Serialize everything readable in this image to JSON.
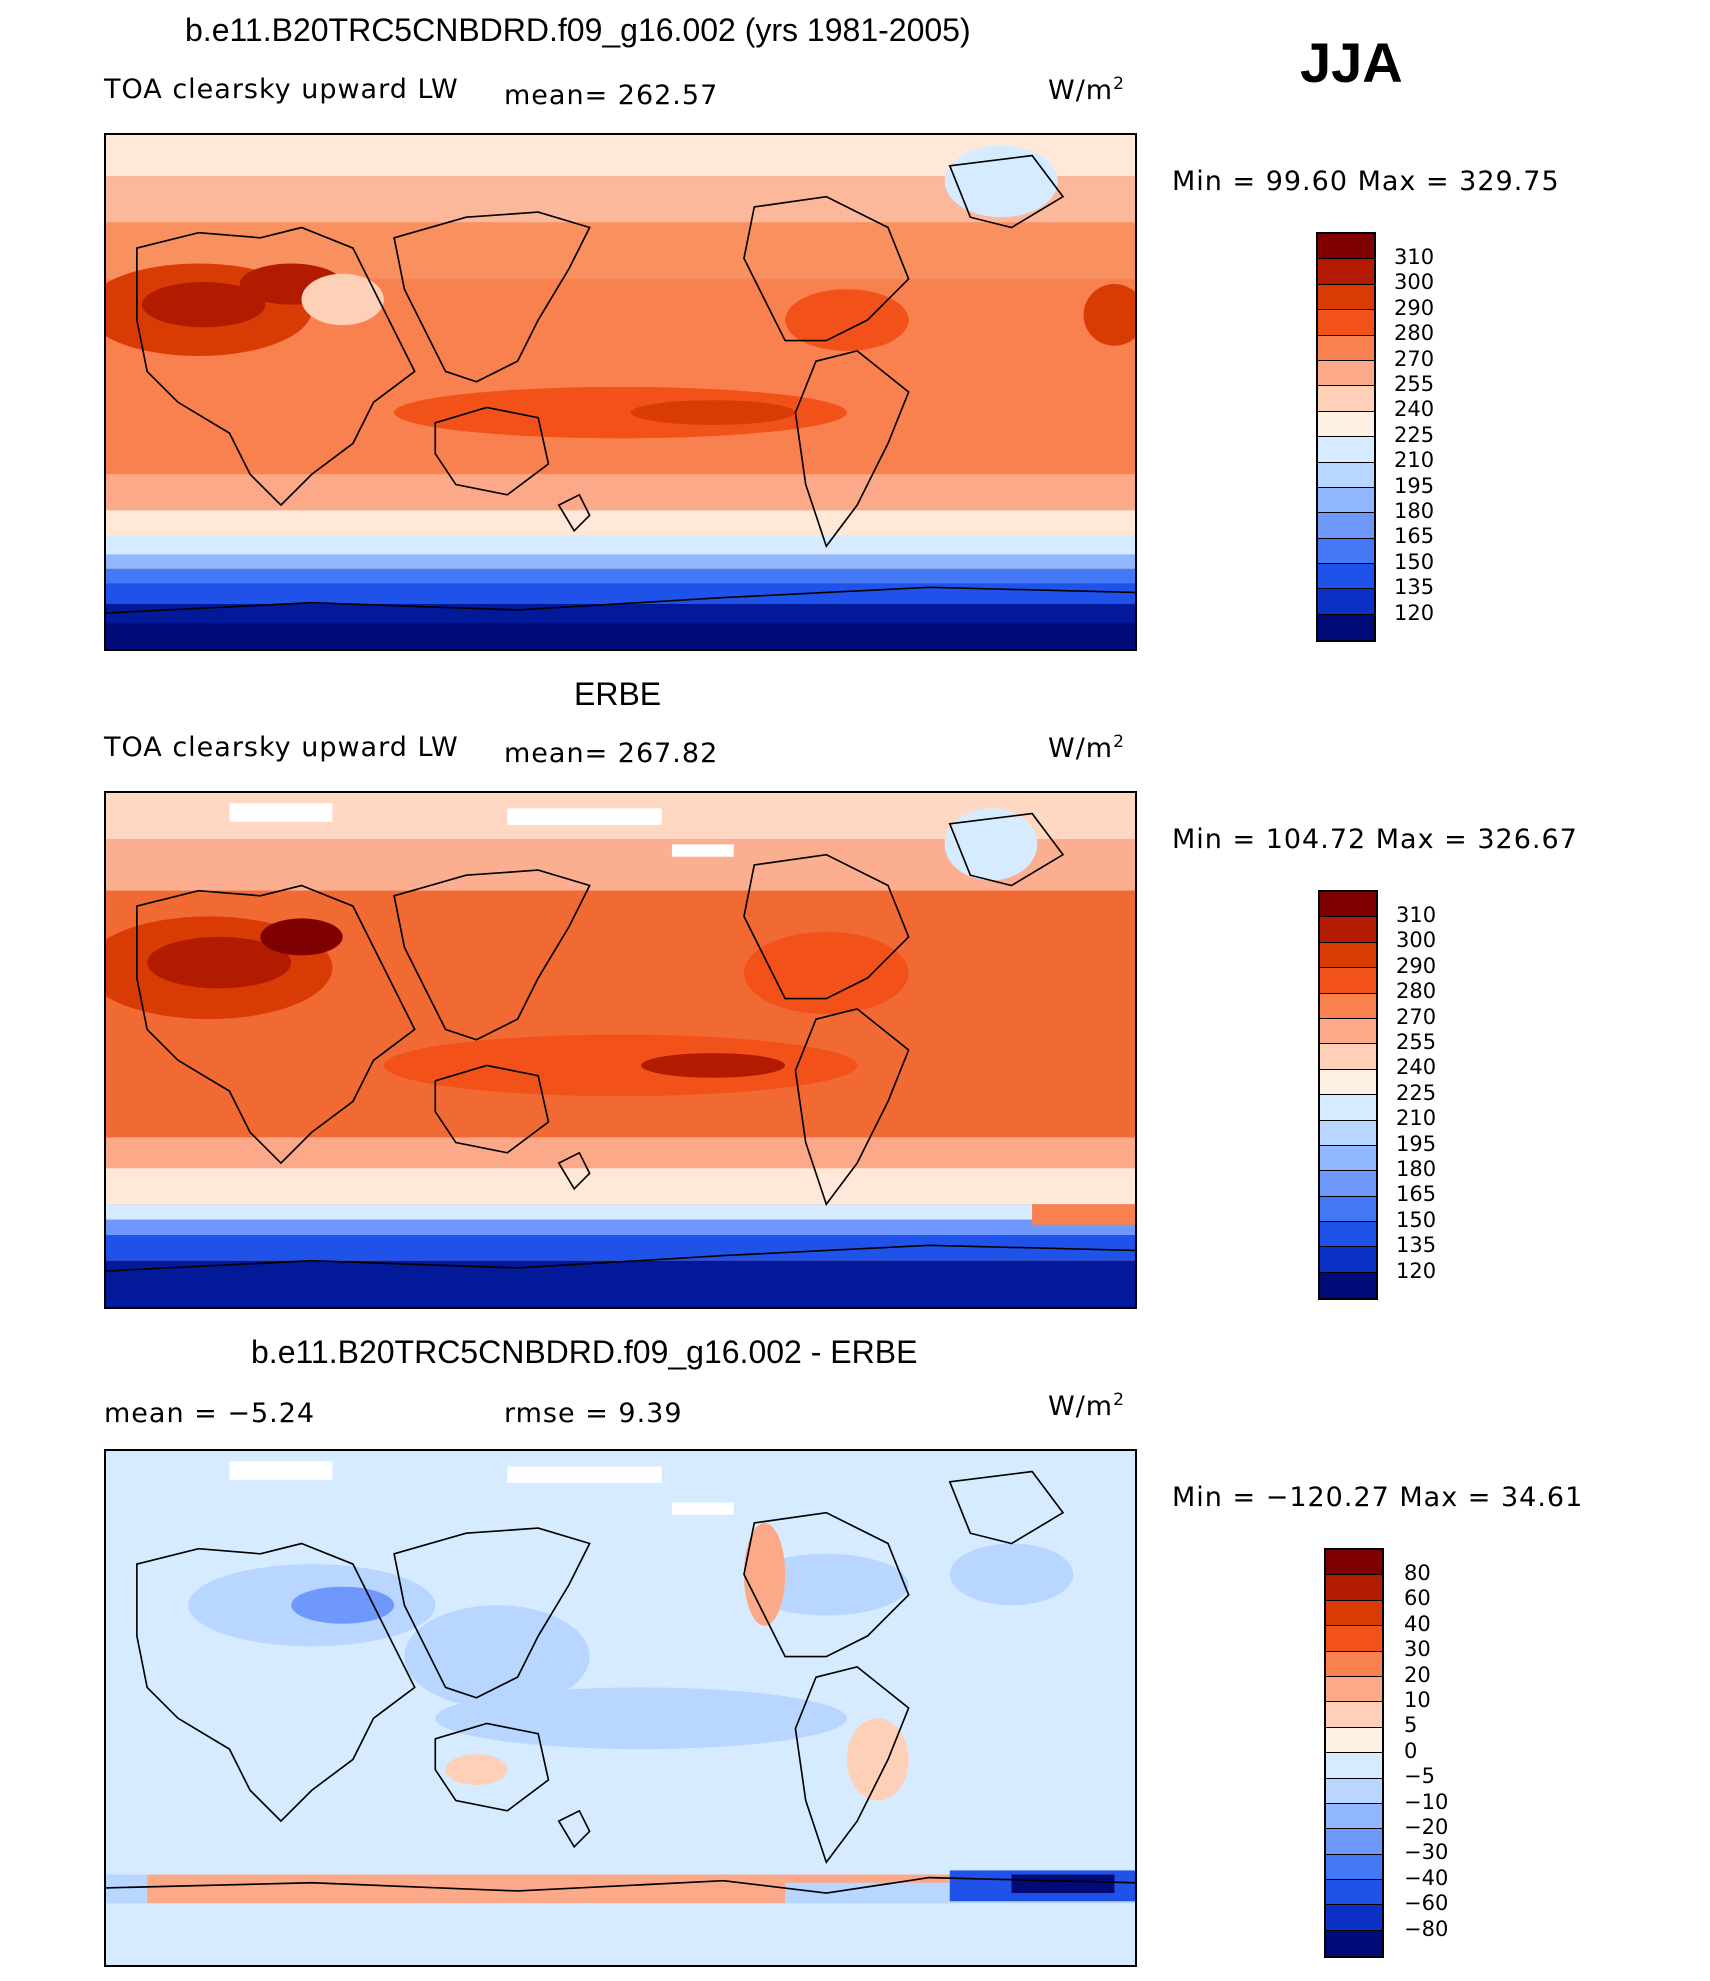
{
  "season": "JJA",
  "units": {
    "base": "W/m",
    "exp": "2"
  },
  "colors": {
    "warm": [
      "#7f0000",
      "#b31b00",
      "#d93b04",
      "#f25219",
      "#f9804f",
      "#fca98a",
      "#ffd0b8",
      "#fff0e4"
    ],
    "cool": [
      "#d6ebff",
      "#b8d6ff",
      "#91b8ff",
      "#6e98fc",
      "#4578f4",
      "#1f52e8",
      "#0b32c4",
      "#02199a",
      "#000b77"
    ],
    "diff": [
      "#7f0000",
      "#b31b00",
      "#d93b04",
      "#f25219",
      "#f9804f",
      "#fca98a",
      "#ffd0b8",
      "#fff0e4",
      "#d6ebff",
      "#b8d6ff",
      "#91b8ff",
      "#6e98fc",
      "#4578f4",
      "#1f52e8",
      "#0b32c4",
      "#02199a",
      "#000b77"
    ]
  },
  "panels": [
    {
      "title": "b.e11.B20TRC5CNBDRD.f09_g16.002 (yrs 1981-2005)",
      "left_label": "TOA clearsky upward LW",
      "mid_label": "mean=  262.57",
      "minmax": "Min  =    99.60  Max  =  329.75",
      "colorbar": [
        "310",
        "300",
        "290",
        "280",
        "270",
        "255",
        "240",
        "225",
        "210",
        "195",
        "180",
        "165",
        "150",
        "135",
        "120"
      ]
    },
    {
      "title": "ERBE",
      "left_label": "TOA clearsky upward LW",
      "mid_label": "mean=  267.82",
      "minmax": "Min  =  104.72  Max  =  326.67",
      "colorbar": [
        "310",
        "300",
        "290",
        "280",
        "270",
        "255",
        "240",
        "225",
        "210",
        "195",
        "180",
        "165",
        "150",
        "135",
        "120"
      ]
    },
    {
      "title": "b.e11.B20TRC5CNBDRD.f09_g16.002 - ERBE",
      "left_label": "mean  =     −5.24",
      "mid_label": "rmse  =      9.39",
      "minmax": "Min  =  −120.27  Max  =    34.61",
      "colorbar": [
        "80",
        "60",
        "40",
        "30",
        "20",
        "10",
        "5",
        "0",
        "−5",
        "−10",
        "−20",
        "−30",
        "−40",
        "−60",
        "−80"
      ]
    }
  ]
}
